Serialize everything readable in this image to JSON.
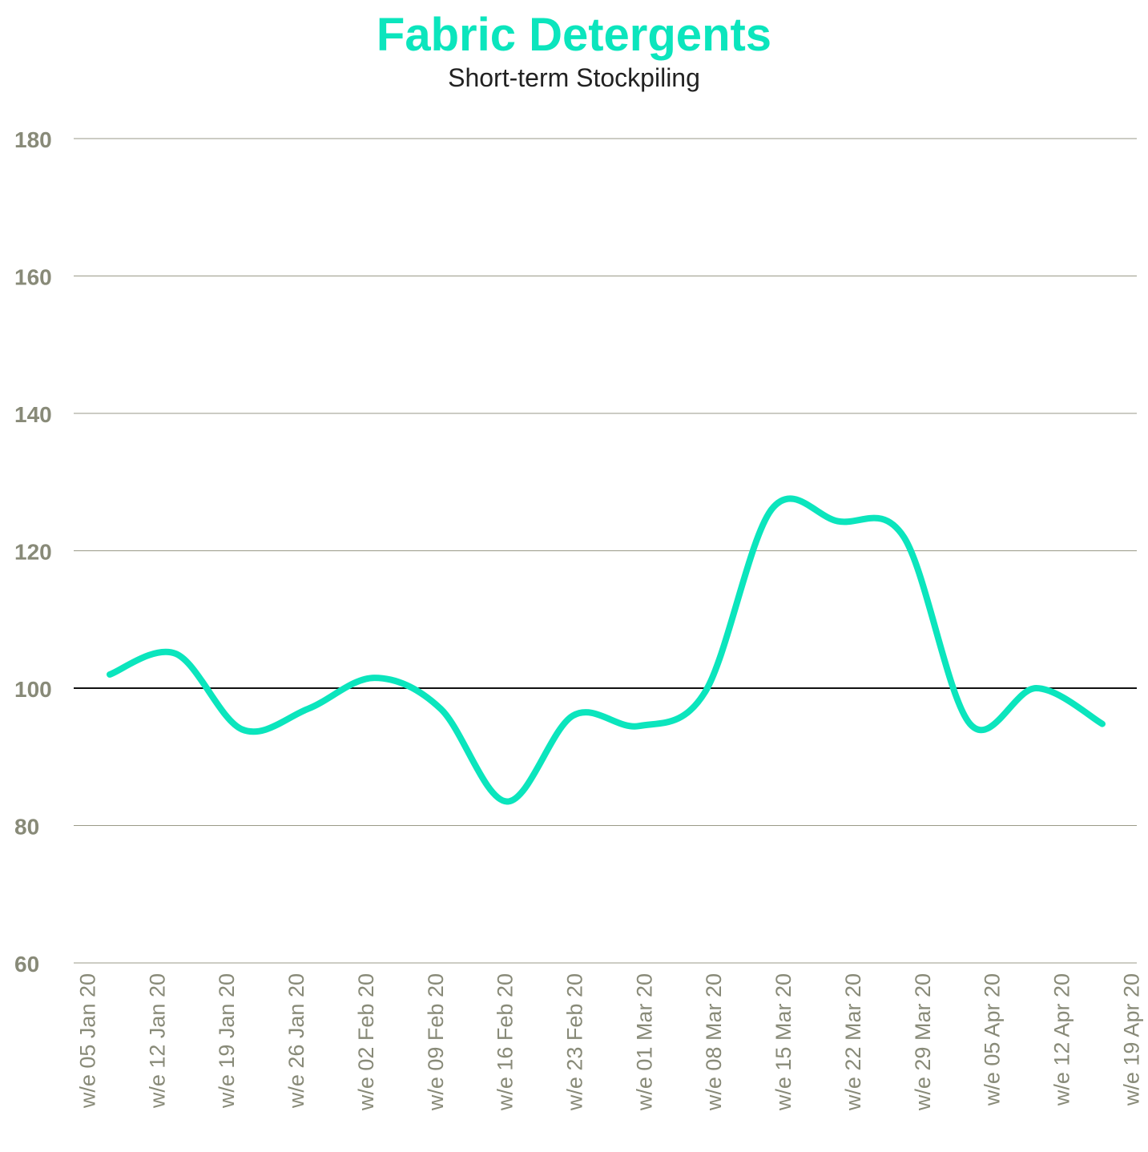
{
  "title": "Fabric Detergents",
  "subtitle": "Short-term Stockpiling",
  "colors": {
    "line": "#0be5bd",
    "title": "#0be5bd",
    "tick_text": "#888a78",
    "grid": "#9a9a88",
    "reference_line": "#111111"
  },
  "chart_data": {
    "type": "line",
    "title": "Fabric Detergents",
    "subtitle": "Short-term Stockpiling",
    "xlabel": "",
    "ylabel": "",
    "ylim": [
      60,
      180
    ],
    "yticks": [
      60,
      80,
      100,
      120,
      140,
      160,
      180
    ],
    "reference_line": 100,
    "grid": true,
    "categories": [
      "w/e 05 Jan 20",
      "w/e 12 Jan 20",
      "w/e 19 Jan 20",
      "w/e 26 Jan 20",
      "w/e 02 Feb 20",
      "w/e 09 Feb 20",
      "w/e 16 Feb 20",
      "w/e 23 Feb 20",
      "w/e 01 Mar 20",
      "w/e 08 Mar 20",
      "w/e 15 Mar 20",
      "w/e 22 Mar 20",
      "w/e 29 Mar 20",
      "w/e 05 Apr 20",
      "w/e 12 Apr 20",
      "w/e 19 Apr 20"
    ],
    "series": [
      {
        "values": [
          102,
          105,
          94,
          97,
          101.5,
          97,
          83.5,
          96,
          94.5,
          99.5,
          126,
          124.3,
          122,
          94.8,
          100,
          94.8
        ]
      }
    ]
  }
}
